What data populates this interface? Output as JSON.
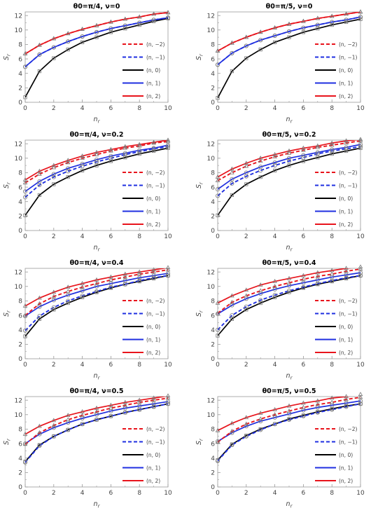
{
  "figure": {
    "colors": {
      "red": "#e8141c",
      "blue": "#1f2fe0",
      "black": "#000000",
      "marker": "#777777"
    },
    "legend_labels": [
      "(n, −2)",
      "(n, −1)",
      "(n, 0)",
      "(n, 1)",
      "(n, 2)"
    ]
  },
  "chart_data": [
    {
      "type": "line",
      "title": "θ0=π/4, ν=0",
      "xlabel": "n_r",
      "ylabel": "S_r",
      "xlim": [
        0,
        10
      ],
      "ylim": [
        0,
        12.5
      ],
      "x": [
        0,
        1,
        2,
        3,
        4,
        5,
        6,
        7,
        8,
        9,
        10
      ],
      "xticks": [
        0,
        2,
        4,
        6,
        8,
        10
      ],
      "yticks": [
        0,
        2,
        4,
        6,
        8,
        10,
        12
      ],
      "series": [
        {
          "name": "(n, −2)",
          "color": "red",
          "dash": true,
          "values": [
            6.7,
            7.9,
            8.8,
            9.5,
            10.1,
            10.6,
            11.1,
            11.5,
            11.8,
            12.2,
            12.4
          ]
        },
        {
          "name": "(n, −1)",
          "color": "blue",
          "dash": true,
          "values": [
            4.9,
            6.6,
            7.6,
            8.4,
            9.1,
            9.7,
            10.2,
            10.6,
            11.0,
            11.4,
            11.7
          ]
        },
        {
          "name": "(n, 0)",
          "color": "black",
          "dash": false,
          "values": [
            0.7,
            4.3,
            6.1,
            7.3,
            8.3,
            9.0,
            9.7,
            10.2,
            10.7,
            11.2,
            11.6
          ]
        },
        {
          "name": "(n, 1)",
          "color": "blue",
          "dash": false,
          "values": [
            4.9,
            6.6,
            7.6,
            8.4,
            9.1,
            9.7,
            10.2,
            10.6,
            11.0,
            11.4,
            11.7
          ]
        },
        {
          "name": "(n, 2)",
          "color": "red",
          "dash": false,
          "values": [
            6.7,
            7.9,
            8.8,
            9.5,
            10.1,
            10.6,
            11.1,
            11.5,
            11.8,
            12.2,
            12.4
          ]
        }
      ]
    },
    {
      "type": "line",
      "title": "θ0=π/5, ν=0",
      "xlabel": "n_r",
      "ylabel": "S_r",
      "xlim": [
        0,
        10
      ],
      "ylim": [
        0,
        12.5
      ],
      "x": [
        0,
        1,
        2,
        3,
        4,
        5,
        6,
        7,
        8,
        9,
        10
      ],
      "xticks": [
        0,
        2,
        4,
        6,
        8,
        10
      ],
      "yticks": [
        0,
        2,
        4,
        6,
        8,
        10,
        12
      ],
      "series": [
        {
          "name": "(n, −2)",
          "color": "red",
          "dash": true,
          "values": [
            7.1,
            8.2,
            9.0,
            9.7,
            10.3,
            10.8,
            11.2,
            11.6,
            11.9,
            12.2,
            12.5
          ]
        },
        {
          "name": "(n, −1)",
          "color": "blue",
          "dash": true,
          "values": [
            5.2,
            6.8,
            7.8,
            8.6,
            9.2,
            9.8,
            10.3,
            10.7,
            11.1,
            11.4,
            11.8
          ]
        },
        {
          "name": "(n, 0)",
          "color": "black",
          "dash": false,
          "values": [
            0.6,
            4.3,
            6.1,
            7.3,
            8.3,
            9.0,
            9.7,
            10.2,
            10.7,
            11.1,
            11.5
          ]
        },
        {
          "name": "(n, 1)",
          "color": "blue",
          "dash": false,
          "values": [
            5.2,
            6.8,
            7.8,
            8.6,
            9.2,
            9.8,
            10.3,
            10.7,
            11.1,
            11.4,
            11.8
          ]
        },
        {
          "name": "(n, 2)",
          "color": "red",
          "dash": false,
          "values": [
            7.1,
            8.2,
            9.0,
            9.7,
            10.3,
            10.8,
            11.2,
            11.6,
            11.9,
            12.2,
            12.5
          ]
        }
      ]
    },
    {
      "type": "line",
      "title": "θ0=π/4, ν=0.2",
      "xlabel": "n_r",
      "ylabel": "S_r",
      "xlim": [
        0,
        10
      ],
      "ylim": [
        0,
        12.5
      ],
      "x": [
        0,
        1,
        2,
        3,
        4,
        5,
        6,
        7,
        8,
        9,
        10
      ],
      "xticks": [
        0,
        2,
        4,
        6,
        8,
        10
      ],
      "yticks": [
        0,
        2,
        4,
        6,
        8,
        10,
        12
      ],
      "series": [
        {
          "name": "(n, −2)",
          "color": "red",
          "dash": true,
          "values": [
            6.6,
            7.8,
            8.7,
            9.4,
            10.0,
            10.5,
            11.0,
            11.4,
            11.7,
            12.1,
            12.3
          ]
        },
        {
          "name": "(n, −1)",
          "color": "blue",
          "dash": true,
          "values": [
            4.6,
            6.3,
            7.4,
            8.2,
            8.9,
            9.5,
            10.0,
            10.5,
            10.9,
            11.3,
            11.6
          ]
        },
        {
          "name": "(n, 0)",
          "color": "black",
          "dash": false,
          "values": [
            2.1,
            4.9,
            6.4,
            7.4,
            8.3,
            9.0,
            9.6,
            10.1,
            10.6,
            11.0,
            11.4
          ]
        },
        {
          "name": "(n, 1)",
          "color": "blue",
          "dash": false,
          "values": [
            5.4,
            6.8,
            7.8,
            8.6,
            9.2,
            9.8,
            10.3,
            10.7,
            11.1,
            11.4,
            11.8
          ]
        },
        {
          "name": "(n, 2)",
          "color": "red",
          "dash": false,
          "values": [
            7.0,
            8.2,
            9.0,
            9.7,
            10.3,
            10.8,
            11.2,
            11.6,
            11.9,
            12.2,
            12.5
          ]
        }
      ]
    },
    {
      "type": "line",
      "title": "θ0=π/5, ν=0.2",
      "xlabel": "n_r",
      "ylabel": "S_r",
      "xlim": [
        0,
        10
      ],
      "ylim": [
        0,
        12.5
      ],
      "x": [
        0,
        1,
        2,
        3,
        4,
        5,
        6,
        7,
        8,
        9,
        10
      ],
      "xticks": [
        0,
        2,
        4,
        6,
        8,
        10
      ],
      "yticks": [
        0,
        2,
        4,
        6,
        8,
        10,
        12
      ],
      "series": [
        {
          "name": "(n, −2)",
          "color": "red",
          "dash": true,
          "values": [
            6.9,
            8.0,
            8.9,
            9.6,
            10.2,
            10.7,
            11.1,
            11.5,
            11.8,
            12.1,
            12.4
          ]
        },
        {
          "name": "(n, −1)",
          "color": "blue",
          "dash": true,
          "values": [
            4.8,
            6.5,
            7.5,
            8.3,
            9.0,
            9.6,
            10.1,
            10.6,
            11.0,
            11.3,
            11.6
          ]
        },
        {
          "name": "(n, 0)",
          "color": "black",
          "dash": false,
          "values": [
            2.1,
            4.9,
            6.4,
            7.4,
            8.3,
            9.0,
            9.6,
            10.1,
            10.6,
            11.0,
            11.4
          ]
        },
        {
          "name": "(n, 1)",
          "color": "blue",
          "dash": false,
          "values": [
            5.7,
            7.1,
            8.0,
            8.8,
            9.4,
            10.0,
            10.4,
            10.8,
            11.2,
            11.5,
            11.9
          ]
        },
        {
          "name": "(n, 2)",
          "color": "red",
          "dash": false,
          "values": [
            7.4,
            8.5,
            9.3,
            10.0,
            10.5,
            11.0,
            11.4,
            11.7,
            12.1,
            12.4,
            12.6
          ]
        }
      ]
    },
    {
      "type": "line",
      "title": "θ0=π/4, ν=0.4",
      "xlabel": "n_r",
      "ylabel": "S_r",
      "xlim": [
        0,
        10
      ],
      "ylim": [
        0,
        12.5
      ],
      "x": [
        0,
        1,
        2,
        3,
        4,
        5,
        6,
        7,
        8,
        9,
        10
      ],
      "xticks": [
        0,
        2,
        4,
        6,
        8,
        10
      ],
      "yticks": [
        0,
        2,
        4,
        6,
        8,
        10,
        12
      ],
      "series": [
        {
          "name": "(n, −2)",
          "color": "red",
          "dash": true,
          "values": [
            6.0,
            7.6,
            8.6,
            9.3,
            9.9,
            10.4,
            10.9,
            11.3,
            11.7,
            12.0,
            12.3
          ]
        },
        {
          "name": "(n, −1)",
          "color": "blue",
          "dash": true,
          "values": [
            3.9,
            5.9,
            7.1,
            8.0,
            8.7,
            9.3,
            9.9,
            10.3,
            10.8,
            11.2,
            11.5
          ]
        },
        {
          "name": "(n, 0)",
          "color": "black",
          "dash": false,
          "values": [
            3.1,
            5.5,
            6.8,
            7.7,
            8.5,
            9.2,
            9.8,
            10.3,
            10.7,
            11.1,
            11.5
          ]
        },
        {
          "name": "(n, 1)",
          "color": "blue",
          "dash": false,
          "values": [
            5.9,
            7.2,
            8.1,
            8.8,
            9.4,
            10.0,
            10.4,
            10.8,
            11.2,
            11.5,
            11.8
          ]
        },
        {
          "name": "(n, 2)",
          "color": "red",
          "dash": false,
          "values": [
            7.3,
            8.4,
            9.2,
            9.9,
            10.4,
            10.9,
            11.3,
            11.7,
            12.0,
            12.3,
            12.6
          ]
        }
      ]
    },
    {
      "type": "line",
      "title": "θ0=π/5, ν=0.4",
      "xlabel": "n_r",
      "ylabel": "S_r",
      "xlim": [
        0,
        10
      ],
      "ylim": [
        0,
        12.5
      ],
      "x": [
        0,
        1,
        2,
        3,
        4,
        5,
        6,
        7,
        8,
        9,
        10
      ],
      "xticks": [
        0,
        2,
        4,
        6,
        8,
        10
      ],
      "yticks": [
        0,
        2,
        4,
        6,
        8,
        10,
        12
      ],
      "series": [
        {
          "name": "(n, −2)",
          "color": "red",
          "dash": true,
          "values": [
            6.3,
            7.8,
            8.7,
            9.4,
            10.0,
            10.5,
            11.0,
            11.4,
            11.7,
            12.1,
            12.4
          ]
        },
        {
          "name": "(n, −1)",
          "color": "blue",
          "dash": true,
          "values": [
            4.0,
            6.0,
            7.2,
            8.1,
            8.8,
            9.4,
            9.9,
            10.4,
            10.8,
            11.2,
            11.5
          ]
        },
        {
          "name": "(n, 0)",
          "color": "black",
          "dash": false,
          "values": [
            3.2,
            5.5,
            6.8,
            7.7,
            8.5,
            9.2,
            9.8,
            10.3,
            10.7,
            11.1,
            11.5
          ]
        },
        {
          "name": "(n, 1)",
          "color": "blue",
          "dash": false,
          "values": [
            6.2,
            7.4,
            8.3,
            9.0,
            9.6,
            10.1,
            10.5,
            10.9,
            11.3,
            11.6,
            11.9
          ]
        },
        {
          "name": "(n, 2)",
          "color": "red",
          "dash": false,
          "values": [
            7.7,
            8.7,
            9.5,
            10.2,
            10.7,
            11.1,
            11.5,
            11.9,
            12.2,
            12.5,
            12.7
          ]
        }
      ]
    },
    {
      "type": "line",
      "title": "θ0=π/4, ν=0.5",
      "xlabel": "n_r",
      "ylabel": "S_r",
      "xlim": [
        0,
        10
      ],
      "ylim": [
        0,
        12.5
      ],
      "x": [
        0,
        1,
        2,
        3,
        4,
        5,
        6,
        7,
        8,
        9,
        10
      ],
      "xticks": [
        0,
        2,
        4,
        6,
        8,
        10
      ],
      "yticks": [
        0,
        2,
        4,
        6,
        8,
        10,
        12
      ],
      "series": [
        {
          "name": "(n, −2)",
          "color": "red",
          "dash": true,
          "values": [
            5.9,
            7.5,
            8.5,
            9.3,
            9.9,
            10.4,
            10.9,
            11.3,
            11.7,
            12.0,
            12.3
          ]
        },
        {
          "name": "(n, −1)",
          "color": "blue",
          "dash": true,
          "values": [
            3.4,
            5.7,
            7.0,
            7.9,
            8.7,
            9.3,
            9.8,
            10.3,
            10.7,
            11.1,
            11.5
          ]
        },
        {
          "name": "(n, 0)",
          "color": "black",
          "dash": false,
          "values": [
            3.5,
            5.8,
            7.0,
            7.9,
            8.7,
            9.3,
            9.8,
            10.3,
            10.7,
            11.1,
            11.5
          ]
        },
        {
          "name": "(n, 1)",
          "color": "blue",
          "dash": false,
          "values": [
            6.0,
            7.3,
            8.2,
            8.9,
            9.5,
            10.0,
            10.5,
            10.9,
            11.2,
            11.5,
            11.8
          ]
        },
        {
          "name": "(n, 2)",
          "color": "red",
          "dash": false,
          "values": [
            7.3,
            8.4,
            9.2,
            9.9,
            10.4,
            10.9,
            11.3,
            11.7,
            12.0,
            12.3,
            12.6
          ]
        }
      ]
    },
    {
      "type": "line",
      "title": "θ0=π/5, ν=0.5",
      "xlabel": "n_r",
      "ylabel": "S_r",
      "xlim": [
        0,
        10
      ],
      "ylim": [
        0,
        12.5
      ],
      "x": [
        0,
        1,
        2,
        3,
        4,
        5,
        6,
        7,
        8,
        9,
        10
      ],
      "xticks": [
        0,
        2,
        4,
        6,
        8,
        10
      ],
      "yticks": [
        0,
        2,
        4,
        6,
        8,
        10,
        12
      ],
      "series": [
        {
          "name": "(n, −2)",
          "color": "red",
          "dash": true,
          "values": [
            6.2,
            7.7,
            8.7,
            9.4,
            10.0,
            10.5,
            11.0,
            11.4,
            11.7,
            12.1,
            12.4
          ]
        },
        {
          "name": "(n, −1)",
          "color": "blue",
          "dash": true,
          "values": [
            3.6,
            5.8,
            7.0,
            7.9,
            8.7,
            9.3,
            9.8,
            10.3,
            10.7,
            11.1,
            11.5
          ]
        },
        {
          "name": "(n, 0)",
          "color": "black",
          "dash": false,
          "values": [
            3.7,
            5.9,
            7.1,
            8.0,
            8.7,
            9.4,
            9.9,
            10.4,
            10.8,
            11.2,
            11.5
          ]
        },
        {
          "name": "(n, 1)",
          "color": "blue",
          "dash": false,
          "values": [
            6.3,
            7.5,
            8.4,
            9.1,
            9.6,
            10.1,
            10.6,
            11.0,
            11.3,
            11.6,
            11.9
          ]
        },
        {
          "name": "(n, 2)",
          "color": "red",
          "dash": false,
          "values": [
            7.8,
            8.8,
            9.6,
            10.2,
            10.7,
            11.2,
            11.6,
            11.9,
            12.3,
            12.5,
            12.8
          ]
        }
      ]
    }
  ]
}
